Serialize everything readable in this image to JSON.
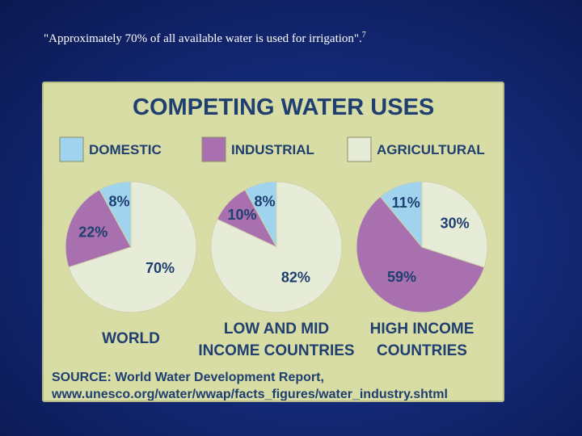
{
  "caption": {
    "text": "\"Approximately 70% of all available water is used for irrigation\".",
    "footnote": "7"
  },
  "colors": {
    "domestic": "#9fd3ee",
    "industrial": "#a870ae",
    "agricultural": "#e7ecd8",
    "text": "#1f3f70",
    "panel": "#d8dca5"
  },
  "chart_data": {
    "type": "pie",
    "title": "COMPETING WATER USES",
    "legend": [
      {
        "key": "domestic",
        "label": "DOMESTIC"
      },
      {
        "key": "industrial",
        "label": "INDUSTRIAL"
      },
      {
        "key": "agricultural",
        "label": "AGRICULTURAL"
      }
    ],
    "pies": [
      {
        "label_lines": [
          "WORLD"
        ],
        "slices": [
          {
            "key": "domestic",
            "value": 8,
            "label": "8%"
          },
          {
            "key": "industrial",
            "value": 22,
            "label": "22%"
          },
          {
            "key": "agricultural",
            "value": 70,
            "label": "70%"
          }
        ]
      },
      {
        "label_lines": [
          "LOW AND MID",
          "INCOME COUNTRIES"
        ],
        "slices": [
          {
            "key": "domestic",
            "value": 8,
            "label": "8%"
          },
          {
            "key": "industrial",
            "value": 10,
            "label": "10%"
          },
          {
            "key": "agricultural",
            "value": 82,
            "label": "82%"
          }
        ]
      },
      {
        "label_lines": [
          "HIGH INCOME",
          "COUNTRIES"
        ],
        "slices": [
          {
            "key": "domestic",
            "value": 11,
            "label": "11%"
          },
          {
            "key": "industrial",
            "value": 59,
            "label": "59%"
          },
          {
            "key": "agricultural",
            "value": 30,
            "label": "30%"
          }
        ]
      }
    ],
    "source_lines": [
      "SOURCE: World Water Development Report,",
      "www.unesco.org/water/wwap/facts_figures/water_industry.shtml"
    ]
  }
}
